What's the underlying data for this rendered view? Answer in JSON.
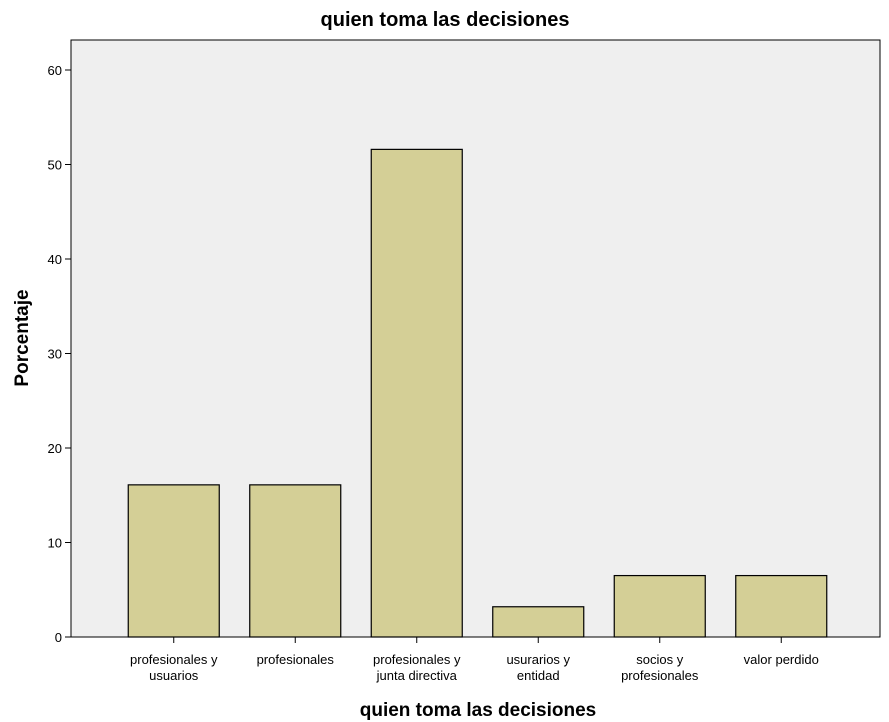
{
  "chart_data": {
    "type": "bar",
    "title": "quien toma las decisiones",
    "xlabel": "quien toma las decisiones",
    "ylabel": "Porcentaje",
    "categories": [
      [
        "profesionales y",
        "usuarios"
      ],
      [
        "profesionales"
      ],
      [
        "profesionales y",
        "junta directiva"
      ],
      [
        "usurarios y",
        "entidad"
      ],
      [
        "socios y",
        "profesionales"
      ],
      [
        "valor perdido"
      ]
    ],
    "values": [
      16.1,
      16.1,
      51.6,
      3.2,
      6.5,
      6.5
    ],
    "ylim": [
      0,
      60
    ],
    "yticks": [
      0,
      10,
      20,
      30,
      40,
      50,
      60
    ],
    "grid": false,
    "legend": "none",
    "colors": {
      "bar_fill": "#d4cf96",
      "bar_stroke": "#000000",
      "plot_background": "#efefef",
      "frame": "#000000"
    }
  }
}
